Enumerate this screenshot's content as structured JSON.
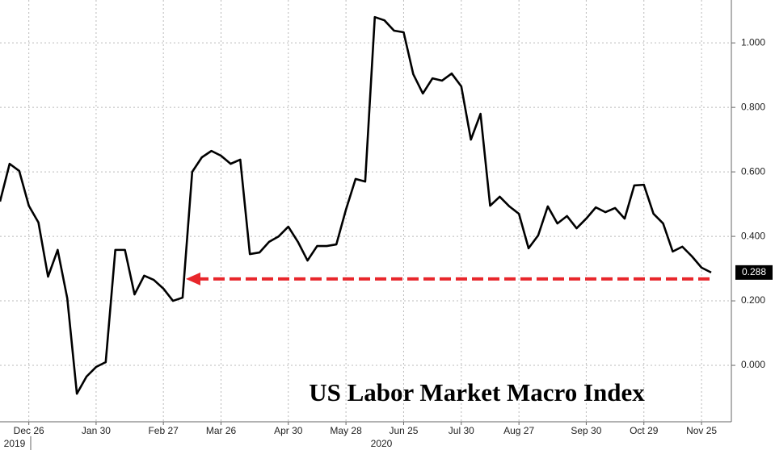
{
  "chart_data": {
    "type": "line",
    "title": "US Labor Market Macro Index",
    "categories": [
      null,
      null,
      null,
      "Dec 26",
      null,
      null,
      null,
      null,
      null,
      null,
      "Jan 30",
      null,
      null,
      null,
      null,
      null,
      null,
      "Feb 27",
      null,
      null,
      null,
      null,
      null,
      "Mar 26",
      null,
      null,
      null,
      null,
      null,
      null,
      "Apr 30",
      null,
      null,
      null,
      null,
      null,
      "May 28",
      null,
      null,
      null,
      null,
      null,
      "Jun 25",
      null,
      null,
      null,
      null,
      null,
      "Jul 30",
      null,
      null,
      null,
      null,
      null,
      "Aug 27",
      null,
      null,
      null,
      null,
      null,
      null,
      "Sep 30",
      null,
      null,
      null,
      null,
      null,
      "Oct 29",
      null,
      null,
      null,
      null,
      null,
      "Nov 25",
      null
    ],
    "x_year_labels": [
      "2019",
      "2020"
    ],
    "series": [
      {
        "name": "US Labor Market Macro Index",
        "color": "#000000",
        "values": [
          0.508,
          0.625,
          0.603,
          0.495,
          0.443,
          0.275,
          0.358,
          0.208,
          -0.088,
          -0.035,
          -0.005,
          0.01,
          0.358,
          0.358,
          0.22,
          0.278,
          0.265,
          0.238,
          0.2,
          0.21,
          0.6,
          0.645,
          0.665,
          0.65,
          0.625,
          0.638,
          0.345,
          0.35,
          0.383,
          0.4,
          0.43,
          0.383,
          0.325,
          0.37,
          0.37,
          0.375,
          0.483,
          0.578,
          0.57,
          1.08,
          1.07,
          1.038,
          1.033,
          0.903,
          0.843,
          0.89,
          0.883,
          0.905,
          0.865,
          0.7,
          0.78,
          0.495,
          0.523,
          0.493,
          0.47,
          0.363,
          0.403,
          0.493,
          0.44,
          0.463,
          0.425,
          0.455,
          0.49,
          0.475,
          0.488,
          0.455,
          0.558,
          0.56,
          0.47,
          0.44,
          0.353,
          0.368,
          0.338,
          0.303,
          0.288
        ],
        "last_value_label": "0.288"
      }
    ],
    "reference_line": {
      "value": 0.268,
      "color": "#e8262b"
    },
    "ylim": [
      -0.175,
      1.133
    ],
    "yticks": [
      {
        "value": 0,
        "label": "0.000"
      },
      {
        "value": 0.2,
        "label": "0.200"
      },
      {
        "value": 0.4,
        "label": "0.400"
      },
      {
        "value": 0.6,
        "label": "0.600"
      },
      {
        "value": 0.8,
        "label": "0.800"
      },
      {
        "value": 1,
        "label": "1.000"
      }
    ],
    "grid": true
  }
}
